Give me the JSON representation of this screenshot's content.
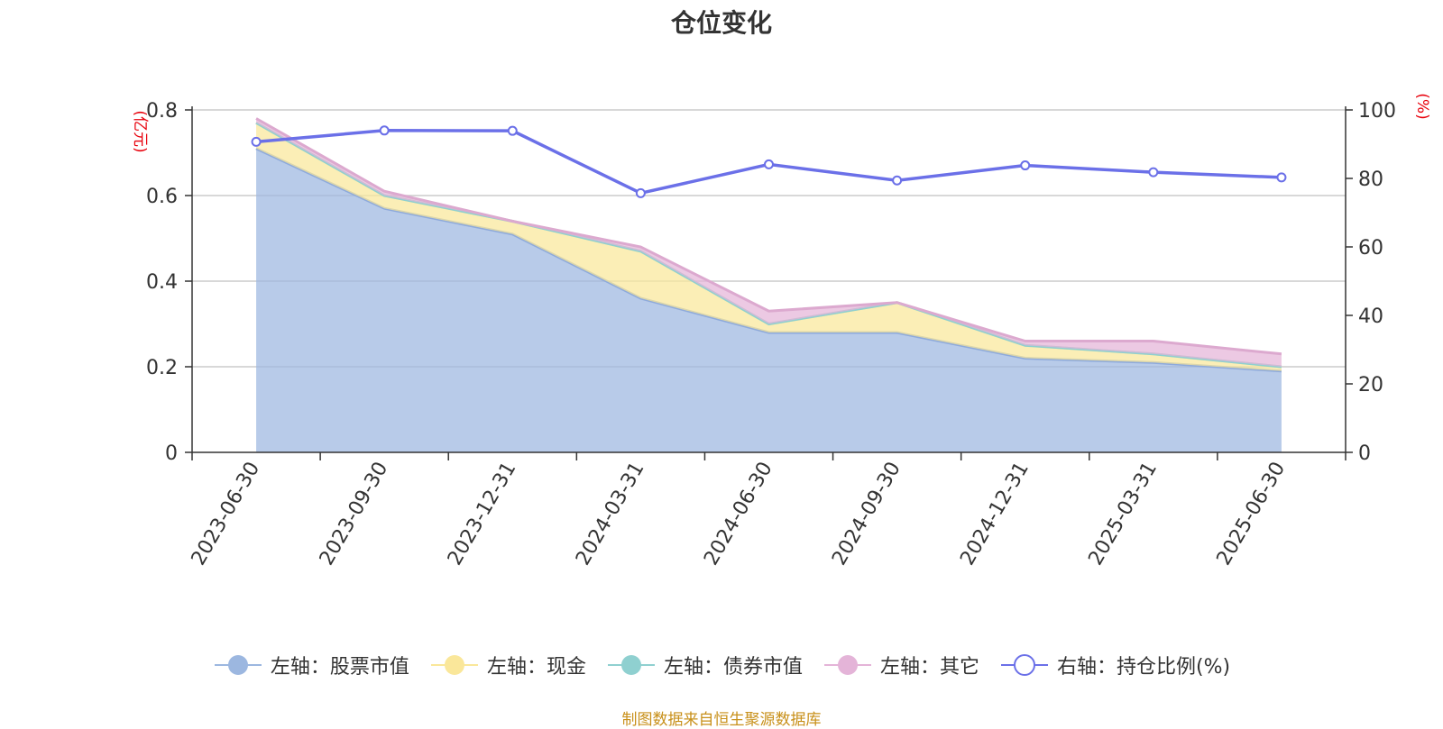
{
  "title": "仓位变化",
  "source": "制图数据来自恒生聚源数据库",
  "colors": {
    "stock": "#9cb7e0",
    "cash": "#fae79a",
    "bond": "#8fd0d0",
    "other": "#e4b4d8",
    "ratio": "#6b70e8",
    "axis_unit": "#e8000b",
    "grid": "#cccccc",
    "axis": "#333333"
  },
  "legend": [
    {
      "label": "左轴：股票市值",
      "key": "stock",
      "marker": "filled"
    },
    {
      "label": "左轴：现金",
      "key": "cash",
      "marker": "filled"
    },
    {
      "label": "左轴：债券市值",
      "key": "bond",
      "marker": "filled"
    },
    {
      "label": "左轴：其它",
      "key": "other",
      "marker": "filled"
    },
    {
      "label": "右轴：持仓比例(%)",
      "key": "ratio",
      "marker": "hollow"
    }
  ],
  "chart_data": {
    "type": "area",
    "title": "仓位变化",
    "x": [
      "2023-06-30",
      "2023-09-30",
      "2023-12-31",
      "2024-03-31",
      "2024-06-30",
      "2024-09-30",
      "2024-12-31",
      "2025-03-31",
      "2025-06-30"
    ],
    "left_axis": {
      "unit": "(亿元)",
      "ylim": [
        0,
        0.8
      ],
      "ticks": [
        "0",
        "0.2",
        "0.4",
        "0.6",
        "0.8"
      ]
    },
    "right_axis": {
      "unit": "(%)",
      "ylim": [
        0,
        100
      ],
      "ticks": [
        "0",
        "20",
        "40",
        "60",
        "80",
        "100"
      ]
    },
    "stacked": true,
    "series": [
      {
        "name": "左轴：股票市值",
        "axis": "left",
        "type": "area",
        "values": [
          0.71,
          0.57,
          0.51,
          0.36,
          0.28,
          0.28,
          0.22,
          0.21,
          0.19
        ]
      },
      {
        "name": "左轴：现金",
        "axis": "left",
        "type": "area",
        "values": [
          0.06,
          0.03,
          0.03,
          0.11,
          0.02,
          0.07,
          0.03,
          0.02,
          0.01
        ]
      },
      {
        "name": "左轴：债券市值",
        "axis": "left",
        "type": "area",
        "values": [
          0,
          0,
          0,
          0,
          0,
          0,
          0,
          0,
          0
        ]
      },
      {
        "name": "左轴：其它",
        "axis": "left",
        "type": "area",
        "values": [
          0.01,
          0.01,
          0.0,
          0.01,
          0.03,
          0.0,
          0.01,
          0.03,
          0.03
        ]
      },
      {
        "name": "右轴：持仓比例(%)",
        "axis": "right",
        "type": "line",
        "values": [
          90.7,
          94,
          93.9,
          75.7,
          84.1,
          79.4,
          83.8,
          81.8,
          80.3
        ]
      }
    ],
    "grid": true,
    "legend_position": "bottom"
  }
}
